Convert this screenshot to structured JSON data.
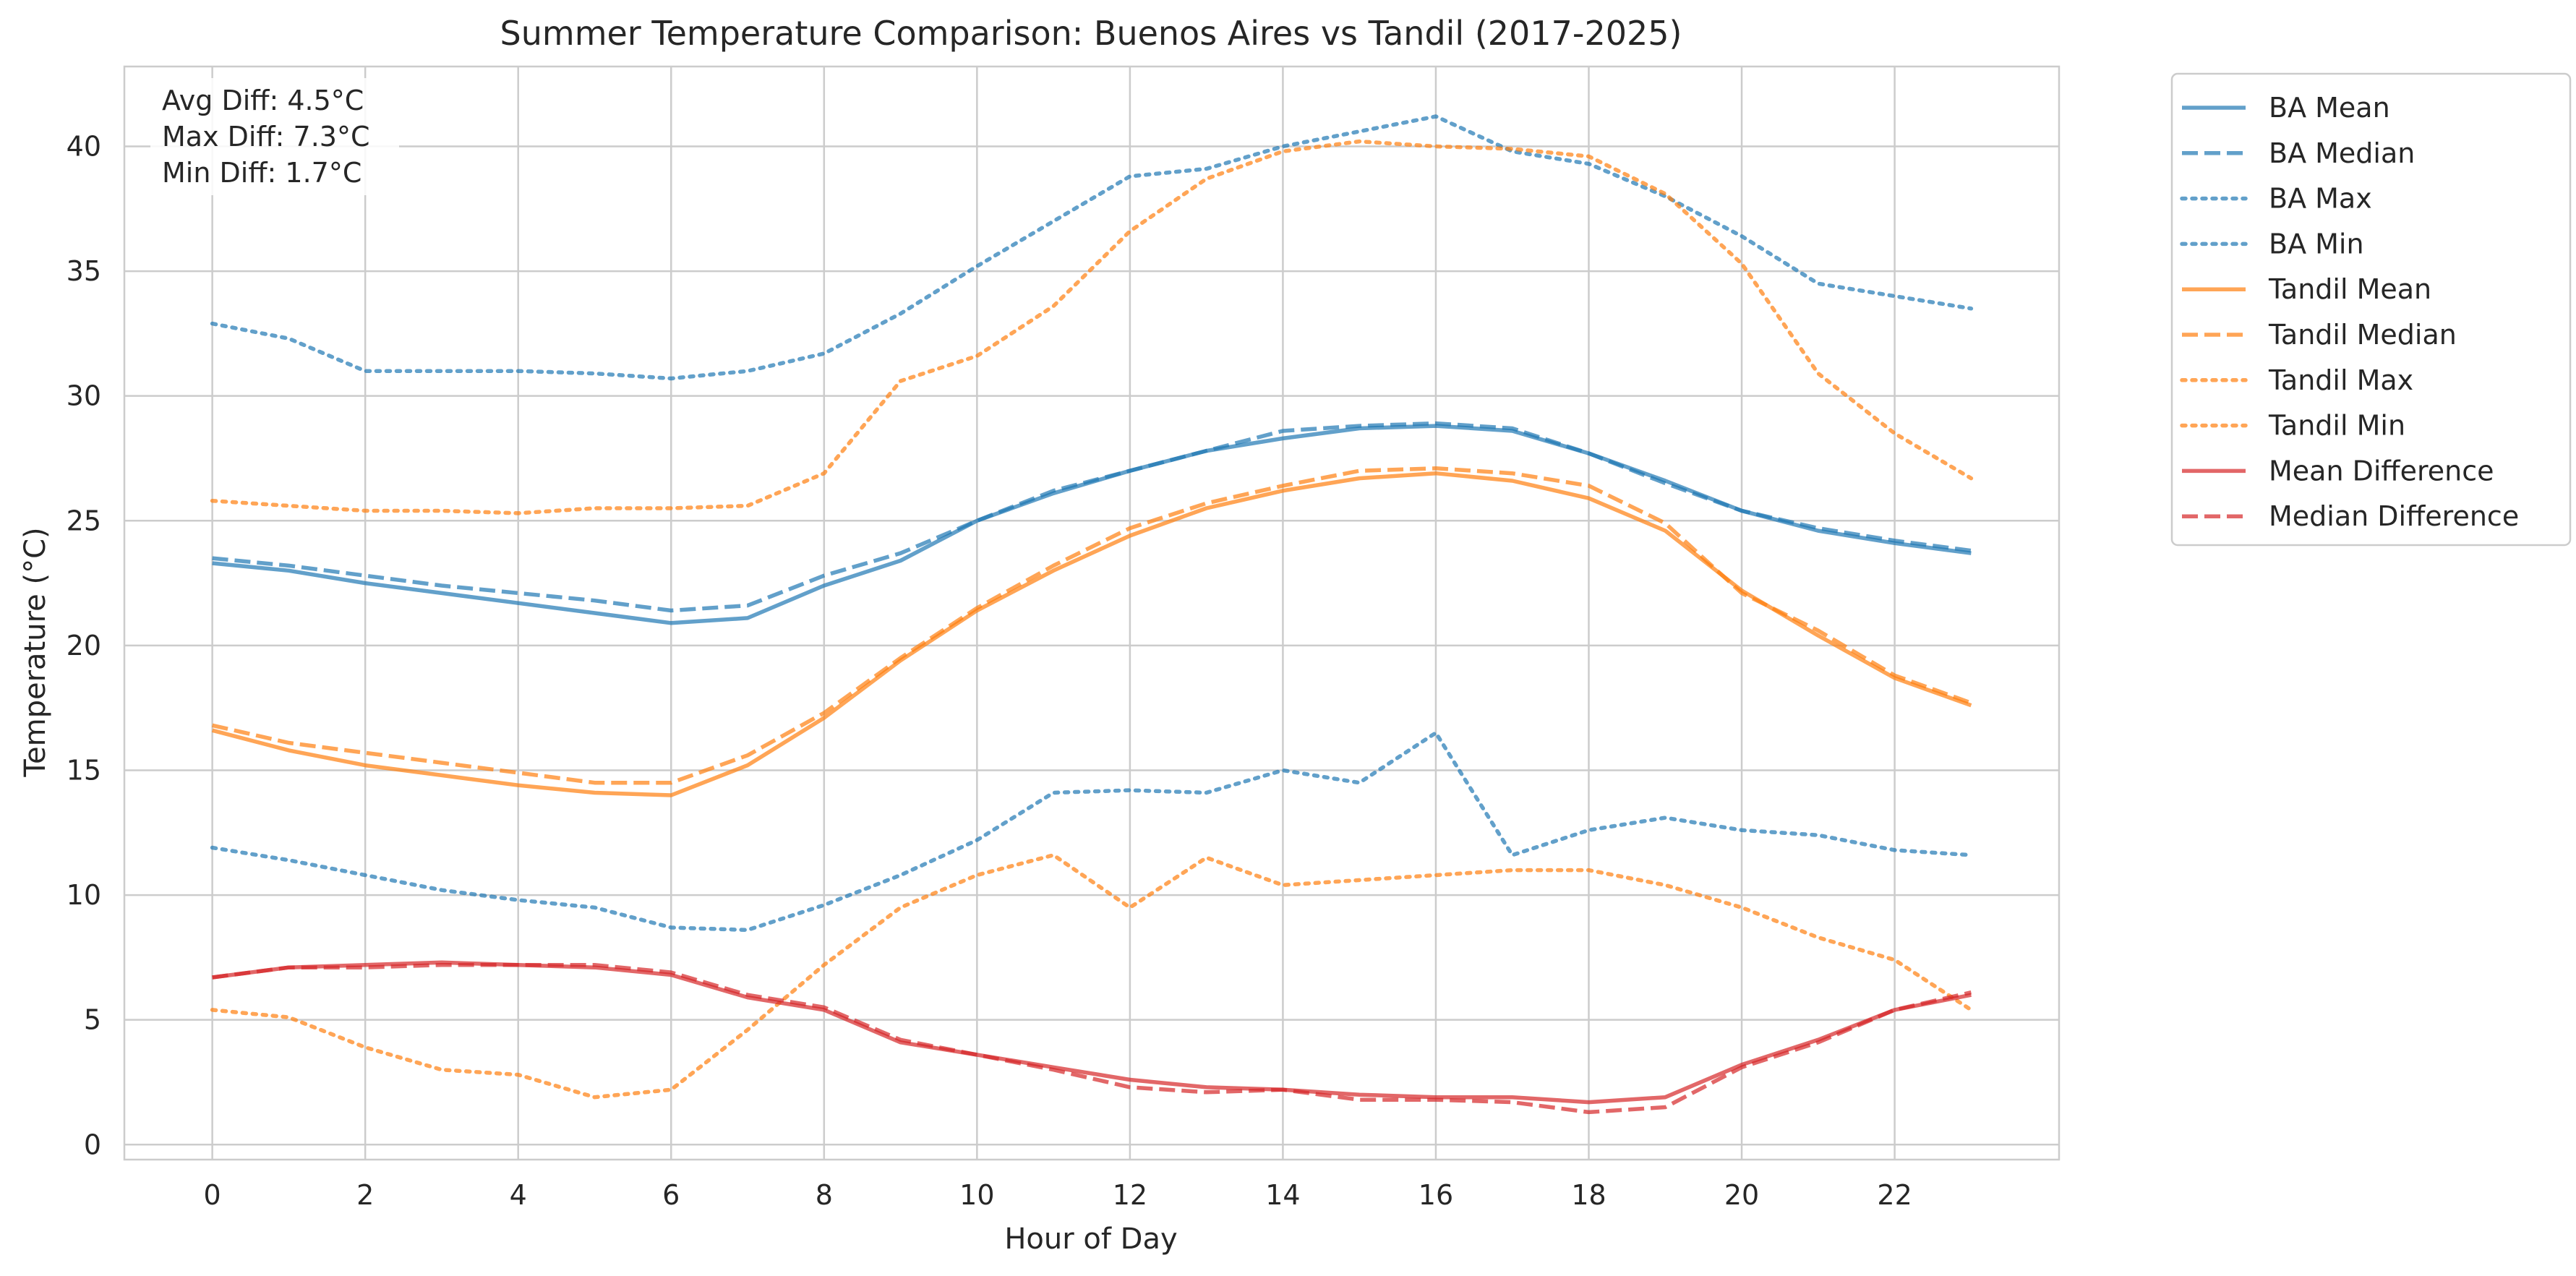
{
  "chart_data": {
    "type": "line",
    "title": "Summer Temperature Comparison: Buenos Aires vs Tandil (2017-2025)",
    "xlabel": "Hour of Day",
    "ylabel": "Temperature (°C)",
    "xlim": [
      -1.15,
      24.15
    ],
    "ylim": [
      -0.6,
      43.2
    ],
    "xticks": [
      0,
      2,
      4,
      6,
      8,
      10,
      12,
      14,
      16,
      18,
      20,
      22
    ],
    "yticks": [
      0,
      5,
      10,
      15,
      20,
      25,
      30,
      35,
      40
    ],
    "grid": true,
    "legend_position": "outside-top-right",
    "annotation": [
      "Avg Diff: 4.5°C",
      "Max Diff: 7.3°C",
      "Min Diff: 1.7°C"
    ],
    "x": [
      0,
      1,
      2,
      3,
      4,
      5,
      6,
      7,
      8,
      9,
      10,
      11,
      12,
      13,
      14,
      15,
      16,
      17,
      18,
      19,
      20,
      21,
      22,
      23
    ],
    "series": [
      {
        "name": "BA Mean",
        "color": "#1f77b4",
        "style": "solid",
        "values": [
          23.3,
          23.0,
          22.5,
          22.1,
          21.7,
          21.3,
          20.9,
          21.1,
          22.4,
          23.4,
          25.0,
          26.1,
          27.0,
          27.8,
          28.3,
          28.7,
          28.8,
          28.6,
          27.7,
          26.6,
          25.4,
          24.6,
          24.1,
          23.7
        ]
      },
      {
        "name": "BA Median",
        "color": "#1f77b4",
        "style": "dashed",
        "values": [
          23.5,
          23.2,
          22.8,
          22.4,
          22.1,
          21.8,
          21.4,
          21.6,
          22.8,
          23.7,
          25.0,
          26.2,
          27.0,
          27.8,
          28.6,
          28.8,
          28.9,
          28.7,
          27.7,
          26.5,
          25.4,
          24.7,
          24.2,
          23.8
        ]
      },
      {
        "name": "BA Max",
        "color": "#1f77b4",
        "style": "dotted",
        "values": [
          32.9,
          32.3,
          31.0,
          31.0,
          31.0,
          30.9,
          30.7,
          31.0,
          31.7,
          33.3,
          35.2,
          37.0,
          38.8,
          39.1,
          40.0,
          40.6,
          41.2,
          39.8,
          39.3,
          38.0,
          36.4,
          34.5,
          34.0,
          33.5
        ]
      },
      {
        "name": "BA Min",
        "color": "#1f77b4",
        "style": "dotted",
        "values": [
          11.9,
          11.4,
          10.8,
          10.2,
          9.8,
          9.5,
          8.7,
          8.6,
          9.6,
          10.8,
          12.2,
          14.1,
          14.2,
          14.1,
          15.0,
          14.5,
          16.5,
          11.6,
          12.6,
          13.1,
          12.6,
          12.4,
          11.8,
          11.6
        ]
      },
      {
        "name": "Tandil Mean",
        "color": "#ff7f0e",
        "style": "solid",
        "values": [
          16.6,
          15.8,
          15.2,
          14.8,
          14.4,
          14.1,
          14.0,
          15.2,
          17.1,
          19.4,
          21.4,
          23.0,
          24.4,
          25.5,
          26.2,
          26.7,
          26.9,
          26.6,
          25.9,
          24.6,
          22.2,
          20.4,
          18.7,
          17.6
        ]
      },
      {
        "name": "Tandil Median",
        "color": "#ff7f0e",
        "style": "dashed",
        "values": [
          16.8,
          16.1,
          15.7,
          15.3,
          14.9,
          14.5,
          14.5,
          15.6,
          17.3,
          19.5,
          21.5,
          23.2,
          24.7,
          25.7,
          26.4,
          27.0,
          27.1,
          26.9,
          26.4,
          24.9,
          22.1,
          20.6,
          18.8,
          17.7
        ]
      },
      {
        "name": "Tandil Max",
        "color": "#ff7f0e",
        "style": "dotted",
        "values": [
          25.8,
          25.6,
          25.4,
          25.4,
          25.3,
          25.5,
          25.5,
          25.6,
          26.9,
          30.6,
          31.6,
          33.6,
          36.6,
          38.7,
          39.8,
          40.2,
          40.0,
          39.9,
          39.6,
          38.1,
          35.3,
          30.9,
          28.5,
          26.7
        ]
      },
      {
        "name": "Tandil Min",
        "color": "#ff7f0e",
        "style": "dotted",
        "values": [
          5.4,
          5.1,
          3.9,
          3.0,
          2.8,
          1.9,
          2.2,
          4.6,
          7.2,
          9.5,
          10.8,
          11.6,
          9.5,
          11.5,
          10.4,
          10.6,
          10.8,
          11.0,
          11.0,
          10.4,
          9.5,
          8.3,
          7.4,
          5.4
        ]
      },
      {
        "name": "Mean Difference",
        "color": "#d62728",
        "style": "solid",
        "values": [
          6.7,
          7.1,
          7.2,
          7.3,
          7.2,
          7.1,
          6.8,
          5.9,
          5.4,
          4.1,
          3.6,
          3.1,
          2.6,
          2.3,
          2.2,
          2.0,
          1.9,
          1.9,
          1.7,
          1.9,
          3.2,
          4.2,
          5.4,
          6.0
        ]
      },
      {
        "name": "Median Difference",
        "color": "#d62728",
        "style": "dashed",
        "values": [
          6.7,
          7.1,
          7.1,
          7.2,
          7.2,
          7.2,
          6.9,
          6.0,
          5.5,
          4.2,
          3.6,
          3.0,
          2.3,
          2.1,
          2.2,
          1.8,
          1.8,
          1.7,
          1.3,
          1.5,
          3.1,
          4.1,
          5.4,
          6.1
        ]
      }
    ]
  }
}
